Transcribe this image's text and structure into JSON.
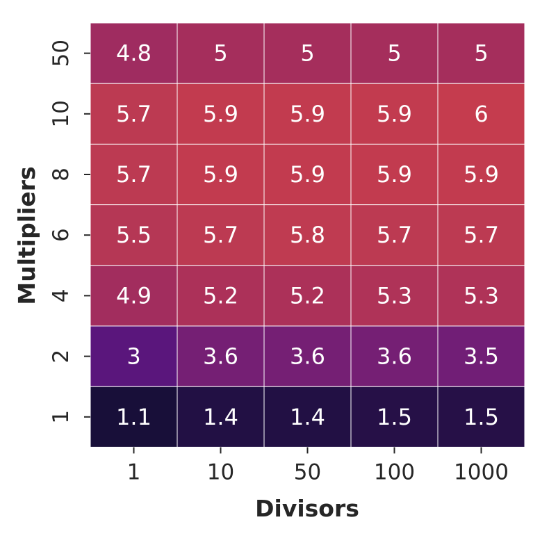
{
  "chart_data": {
    "type": "heatmap",
    "title": "",
    "xlabel": "Divisors",
    "ylabel": "Multipliers",
    "x_categories": [
      "1",
      "10",
      "50",
      "100",
      "1000"
    ],
    "y_categories": [
      "50",
      "10",
      "8",
      "6",
      "4",
      "2",
      "1"
    ],
    "values": [
      [
        4.8,
        5,
        5,
        5,
        5
      ],
      [
        5.7,
        5.9,
        5.9,
        5.9,
        6
      ],
      [
        5.7,
        5.9,
        5.9,
        5.9,
        5.9
      ],
      [
        5.5,
        5.7,
        5.8,
        5.7,
        5.7
      ],
      [
        4.9,
        5.2,
        5.2,
        5.3,
        5.3
      ],
      [
        3,
        3.6,
        3.6,
        3.6,
        3.5
      ],
      [
        1.1,
        1.4,
        1.4,
        1.5,
        1.5
      ]
    ],
    "labels": [
      [
        "4.8",
        "5",
        "5",
        "5",
        "5"
      ],
      [
        "5.7",
        "5.9",
        "5.9",
        "5.9",
        "6"
      ],
      [
        "5.7",
        "5.9",
        "5.9",
        "5.9",
        "5.9"
      ],
      [
        "5.5",
        "5.7",
        "5.8",
        "5.7",
        "5.7"
      ],
      [
        "4.9",
        "5.2",
        "5.2",
        "5.3",
        "5.3"
      ],
      [
        "3",
        "3.6",
        "3.6",
        "3.6",
        "3.5"
      ],
      [
        "1.1",
        "1.4",
        "1.4",
        "1.5",
        "1.5"
      ]
    ],
    "colormap": "flare (dark purple to red)",
    "grid_line_color": "#ffffff",
    "legend": "none",
    "colorbar": false
  }
}
